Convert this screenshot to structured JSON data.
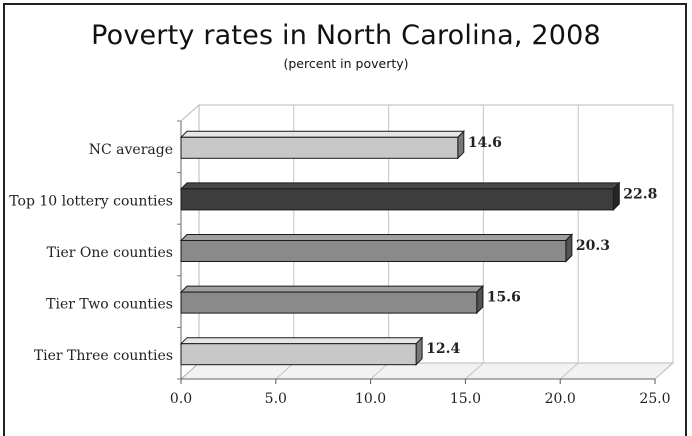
{
  "chart_data": {
    "type": "bar",
    "orientation": "horizontal",
    "title": "Poverty rates in North Carolina, 2008",
    "subtitle": "(percent in poverty)",
    "xlabel": "",
    "ylabel": "",
    "xlim": [
      0,
      25
    ],
    "x_ticks": [
      "0.0",
      "5.0",
      "10.0",
      "15.0",
      "20.0",
      "25.0"
    ],
    "grid": true,
    "categories": [
      "NC average",
      "Top 10 lottery counties",
      "Tier One counties",
      "Tier Two counties",
      "Tier Three counties"
    ],
    "values": [
      14.6,
      22.8,
      20.3,
      15.6,
      12.4
    ],
    "value_labels": [
      "14.6",
      "22.8",
      "20.3",
      "15.6",
      "12.4"
    ],
    "bar_colors": [
      "#c8c8c8",
      "#3d3d3d",
      "#8a8a8a",
      "#8a8a8a",
      "#c8c8c8"
    ]
  }
}
